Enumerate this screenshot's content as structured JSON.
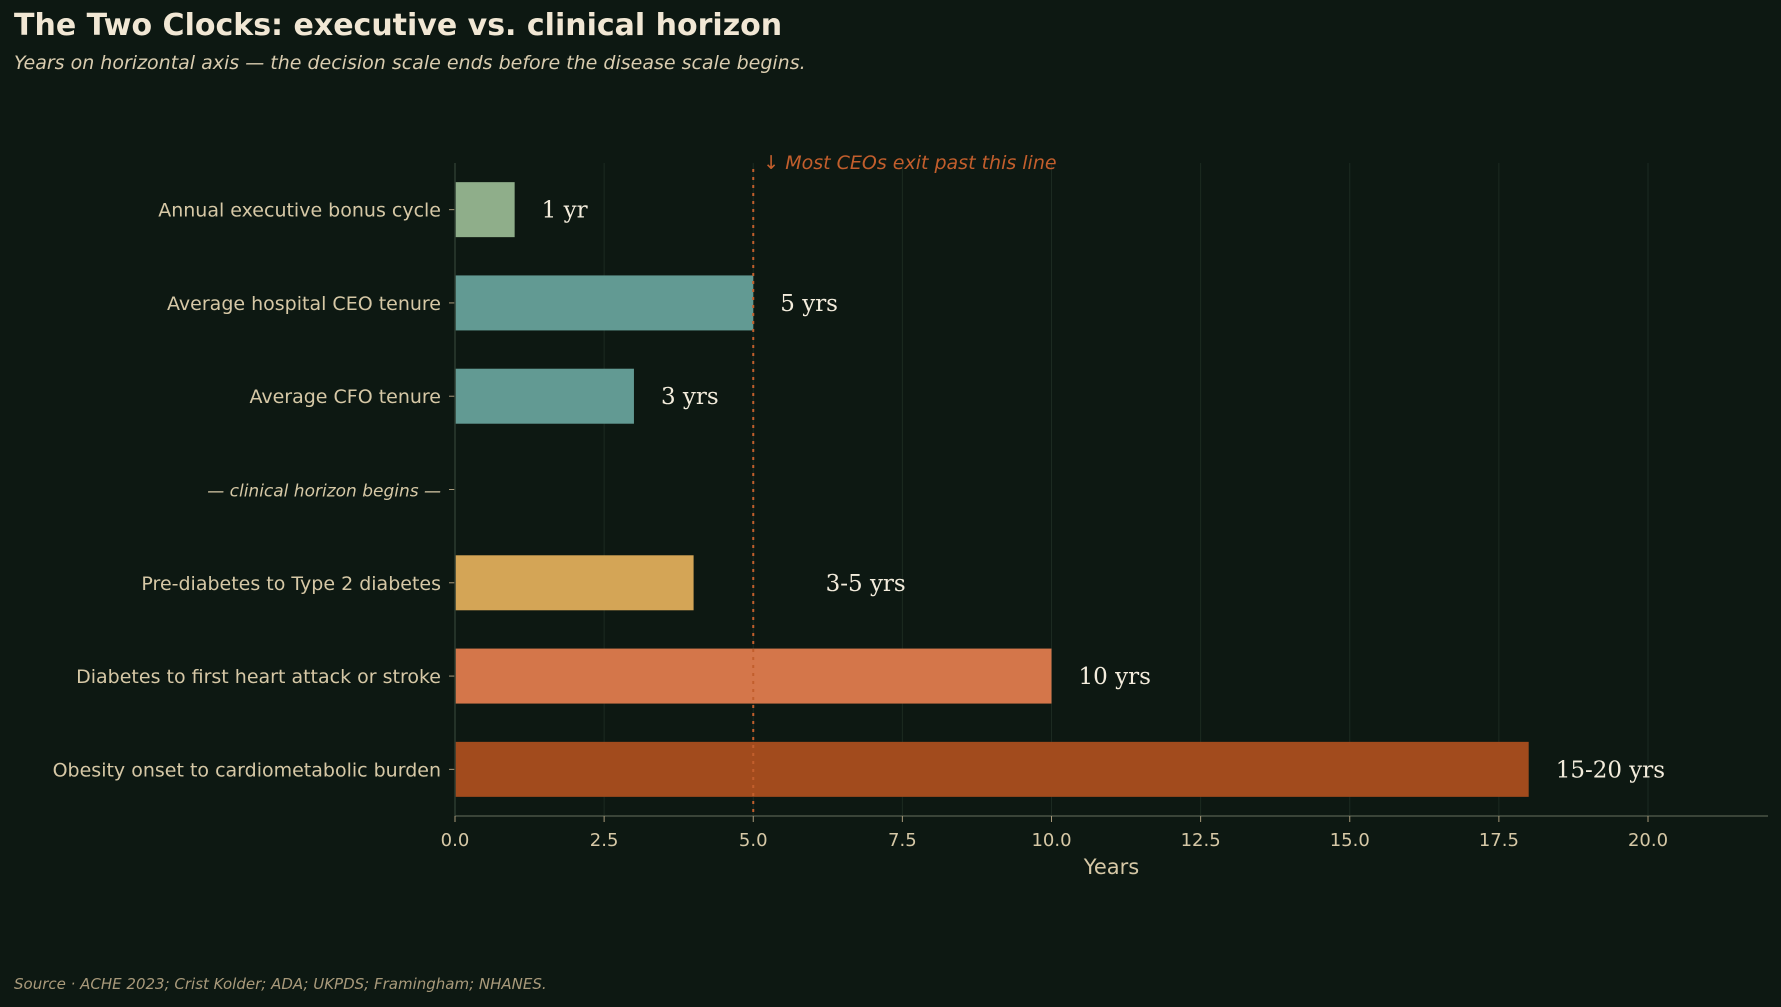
{
  "chart_data": {
    "type": "bar",
    "orientation": "horizontal",
    "title": "The Two Clocks: executive vs. clinical horizon",
    "subtitle": "Years on horizontal axis — the decision scale ends before the disease scale begins.",
    "source": "Source · ACHE 2023; Crist Kolder; ADA; UKPDS; Framingham; NHANES.",
    "xlabel": "Years",
    "ylabel": "",
    "xlim": [
      0,
      22
    ],
    "xticks": [
      0,
      2.5,
      5,
      7.5,
      10,
      12.5,
      15,
      17.5,
      20
    ],
    "xtick_labels": [
      "0.0",
      "2.5",
      "5.0",
      "7.5",
      "10.0",
      "12.5",
      "15.0",
      "17.5",
      "20.0"
    ],
    "grid": "vertical, faint",
    "categories": [
      "Annual executive bonus cycle",
      "Average hospital CEO tenure",
      "Average CFO tenure",
      "— clinical horizon begins —",
      "Pre-diabetes to Type 2 diabetes",
      "Diabetes to first heart attack or stroke",
      "Obesity onset to cardiometabolic burden"
    ],
    "values": [
      1,
      5,
      3,
      null,
      4,
      10,
      18
    ],
    "value_labels": [
      "1 yr",
      "5 yrs",
      "3 yrs",
      "",
      "3-5 yrs",
      "10 yrs",
      "15-20 yrs"
    ],
    "colors": [
      "#8fae8a",
      "#629a93",
      "#629a93",
      null,
      "#d4a556",
      "#d4764a",
      "#a24b1d"
    ],
    "reference_line": {
      "x": 5,
      "label": "↓ Most CEOs exit past this line",
      "color": "#c25e2c",
      "style": "dotted"
    }
  }
}
